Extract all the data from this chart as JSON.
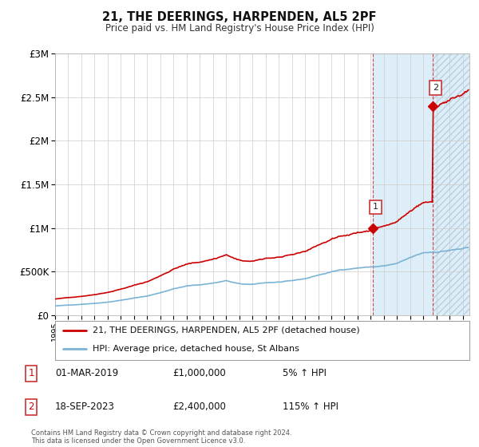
{
  "title": "21, THE DEERINGS, HARPENDEN, AL5 2PF",
  "subtitle": "Price paid vs. HM Land Registry's House Price Index (HPI)",
  "ylim": [
    0,
    3000000
  ],
  "yticks": [
    0,
    500000,
    1000000,
    1500000,
    2000000,
    2500000,
    3000000
  ],
  "ytick_labels": [
    "£0",
    "£500K",
    "£1M",
    "£1.5M",
    "£2M",
    "£2.5M",
    "£3M"
  ],
  "hpi_color": "#7ab3d4",
  "price_color": "#cc0000",
  "marker1_year": 2019.17,
  "marker1_price": 1000000,
  "marker2_year": 2023.72,
  "marker2_price": 2400000,
  "legend_line1": "21, THE DEERINGS, HARPENDEN, AL5 2PF (detached house)",
  "legend_line2": "HPI: Average price, detached house, St Albans",
  "footnote": "Contains HM Land Registry data © Crown copyright and database right 2024.\nThis data is licensed under the Open Government Licence v3.0.",
  "table_row1": [
    "1",
    "01-MAR-2019",
    "£1,000,000",
    "5% ↑ HPI"
  ],
  "table_row2": [
    "2",
    "18-SEP-2023",
    "£2,400,000",
    "115% ↑ HPI"
  ],
  "background_color": "#ffffff",
  "plot_bg_color": "#ffffff",
  "grid_color": "#cccccc",
  "shade_color": "#ddeef8",
  "hatch_color": "#c8dff0",
  "xmin": 1995.0,
  "xmax": 2026.5
}
